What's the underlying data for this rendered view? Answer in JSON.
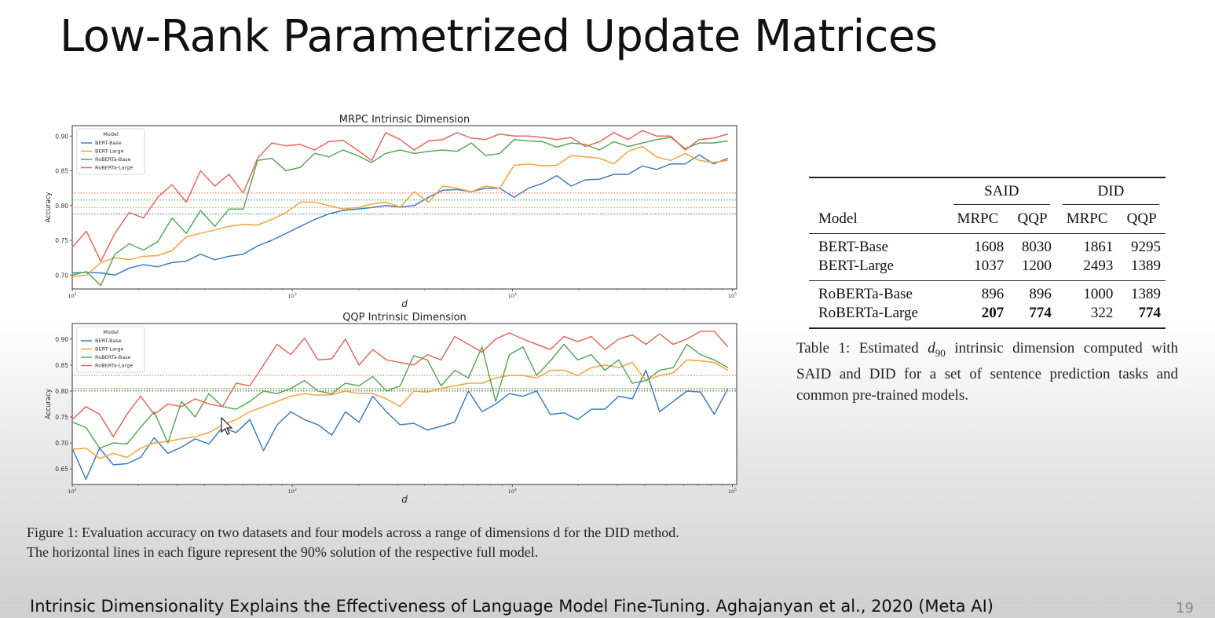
{
  "slide": {
    "title": "Low-Rank Parametrized Update Matrices",
    "footer": "Intrinsic Dimensionality Explains the Effectiveness of Language Model Fine-Tuning. Aghajanyan et al., 2020 (Meta AI)",
    "page_number": "19"
  },
  "figure_caption": {
    "line1": "Figure 1: Evaluation accuracy on two datasets and four models across a range of dimensions d for the DID method.",
    "line2": "The horizontal lines in each figure represent the 90% solution of the respective full model."
  },
  "table": {
    "group_headers": [
      "SAID",
      "DID"
    ],
    "columns": [
      "Model",
      "MRPC",
      "QQP",
      "MRPC",
      "QQP"
    ],
    "rows": [
      {
        "model": "BERT-Base",
        "values": [
          "1608",
          "8030",
          "1861",
          "9295"
        ]
      },
      {
        "model": "BERT-Large",
        "values": [
          "1037",
          "1200",
          "2493",
          "1389"
        ]
      },
      {
        "model": "RoBERTa-Base",
        "values": [
          "896",
          "896",
          "1000",
          "1389"
        ]
      },
      {
        "model": "RoBERTa-Large",
        "values": [
          "207",
          "774",
          "322",
          "774"
        ]
      }
    ],
    "caption_parts": [
      "Table 1: Estimated ",
      "d",
      "90",
      " intrinsic dimension computed with SAID and DID for a set of sentence prediction tasks and common pre-trained models."
    ]
  },
  "chart_data": [
    {
      "type": "line",
      "title": "MRPC Intrinsic Dimension",
      "xlabel": "d",
      "ylabel": "Accuracy",
      "xscale": "log",
      "xlim": [
        2,
        5.02
      ],
      "ylim": [
        0.68,
        0.915
      ],
      "xticks": [
        2,
        3,
        4,
        5
      ],
      "yticks": [
        "0.70",
        "0.75",
        "0.80",
        "0.85",
        "0.90"
      ],
      "legend": {
        "title": "Model",
        "position": "top-left"
      },
      "series": [
        {
          "name": "BERT-Base",
          "color": "#3d7fbf",
          "threshold": 0.788,
          "y": [
            0.703,
            0.704,
            0.703,
            0.7,
            0.71,
            0.715,
            0.712,
            0.718,
            0.72,
            0.73,
            0.722,
            0.727,
            0.73,
            0.742,
            0.75,
            0.76,
            0.77,
            0.78,
            0.788,
            0.793,
            0.795,
            0.797,
            0.8,
            0.798,
            0.8,
            0.812,
            0.822,
            0.823,
            0.82,
            0.825,
            0.825,
            0.812,
            0.825,
            0.832,
            0.843,
            0.828,
            0.837,
            0.838,
            0.845,
            0.845,
            0.857,
            0.852,
            0.86,
            0.86,
            0.873,
            0.86,
            0.868
          ]
        },
        {
          "name": "BERT-Large",
          "color": "#f5a33b",
          "threshold": 0.797,
          "y": [
            0.698,
            0.7,
            0.718,
            0.725,
            0.722,
            0.727,
            0.728,
            0.735,
            0.755,
            0.76,
            0.765,
            0.77,
            0.773,
            0.772,
            0.78,
            0.79,
            0.805,
            0.805,
            0.8,
            0.795,
            0.797,
            0.802,
            0.805,
            0.798,
            0.82,
            0.805,
            0.828,
            0.825,
            0.82,
            0.828,
            0.825,
            0.858,
            0.86,
            0.857,
            0.858,
            0.872,
            0.87,
            0.868,
            0.86,
            0.878,
            0.885,
            0.87,
            0.865,
            0.875,
            0.865,
            0.862,
            0.865
          ]
        },
        {
          "name": "RoBERTa-Base",
          "color": "#5aa85a",
          "threshold": 0.808,
          "y": [
            0.7,
            0.705,
            0.685,
            0.73,
            0.745,
            0.736,
            0.748,
            0.782,
            0.76,
            0.793,
            0.77,
            0.795,
            0.795,
            0.865,
            0.868,
            0.85,
            0.855,
            0.875,
            0.87,
            0.88,
            0.872,
            0.862,
            0.875,
            0.88,
            0.875,
            0.878,
            0.88,
            0.878,
            0.89,
            0.872,
            0.875,
            0.895,
            0.893,
            0.892,
            0.884,
            0.89,
            0.888,
            0.88,
            0.892,
            0.885,
            0.89,
            0.895,
            0.898,
            0.882,
            0.89,
            0.89,
            0.893
          ]
        },
        {
          "name": "RoBERTa-Large",
          "color": "#e36a5c",
          "threshold": 0.818,
          "y": [
            0.74,
            0.763,
            0.72,
            0.76,
            0.79,
            0.782,
            0.812,
            0.83,
            0.805,
            0.85,
            0.828,
            0.845,
            0.818,
            0.868,
            0.89,
            0.886,
            0.888,
            0.88,
            0.892,
            0.894,
            0.88,
            0.865,
            0.905,
            0.895,
            0.88,
            0.893,
            0.895,
            0.905,
            0.897,
            0.895,
            0.903,
            0.9,
            0.9,
            0.898,
            0.895,
            0.898,
            0.885,
            0.892,
            0.905,
            0.895,
            0.908,
            0.9,
            0.9,
            0.88,
            0.895,
            0.897,
            0.903
          ]
        }
      ]
    },
    {
      "type": "line",
      "title": "QQP Intrinsic Dimension",
      "xlabel": "d",
      "ylabel": "Accuracy",
      "xscale": "log",
      "xlim": [
        2,
        5.02
      ],
      "ylim": [
        0.62,
        0.93
      ],
      "xticks": [
        2,
        3,
        4,
        5
      ],
      "yticks": [
        "0.65",
        "0.70",
        "0.75",
        "0.80",
        "0.85",
        "0.90"
      ],
      "legend": {
        "title": "Model",
        "position": "top-left"
      },
      "series": [
        {
          "name": "BERT-Base",
          "color": "#3d7fbf",
          "threshold": 0.8,
          "y": [
            0.69,
            0.63,
            0.69,
            0.658,
            0.66,
            0.672,
            0.71,
            0.68,
            0.692,
            0.708,
            0.698,
            0.73,
            0.72,
            0.745,
            0.685,
            0.735,
            0.76,
            0.745,
            0.735,
            0.715,
            0.76,
            0.74,
            0.79,
            0.76,
            0.735,
            0.738,
            0.725,
            0.732,
            0.74,
            0.8,
            0.76,
            0.775,
            0.795,
            0.79,
            0.8,
            0.755,
            0.758,
            0.745,
            0.765,
            0.765,
            0.79,
            0.785,
            0.84,
            0.76,
            0.78,
            0.8,
            0.798,
            0.755,
            0.805
          ]
        },
        {
          "name": "BERT-Large",
          "color": "#f5a33b",
          "threshold": 0.802,
          "y": [
            0.688,
            0.69,
            0.67,
            0.68,
            0.672,
            0.69,
            0.7,
            0.703,
            0.708,
            0.712,
            0.72,
            0.735,
            0.745,
            0.76,
            0.77,
            0.78,
            0.79,
            0.795,
            0.792,
            0.793,
            0.8,
            0.795,
            0.795,
            0.785,
            0.77,
            0.8,
            0.798,
            0.805,
            0.81,
            0.815,
            0.815,
            0.825,
            0.83,
            0.83,
            0.825,
            0.84,
            0.84,
            0.83,
            0.845,
            0.85,
            0.845,
            0.855,
            0.82,
            0.83,
            0.835,
            0.86,
            0.858,
            0.855,
            0.84
          ]
        },
        {
          "name": "RoBERTa-Base",
          "color": "#5aa85a",
          "threshold": 0.805,
          "y": [
            0.74,
            0.73,
            0.69,
            0.7,
            0.698,
            0.73,
            0.76,
            0.7,
            0.78,
            0.75,
            0.795,
            0.77,
            0.765,
            0.78,
            0.8,
            0.795,
            0.805,
            0.82,
            0.8,
            0.795,
            0.815,
            0.81,
            0.828,
            0.8,
            0.81,
            0.868,
            0.86,
            0.81,
            0.84,
            0.825,
            0.885,
            0.78,
            0.87,
            0.885,
            0.83,
            0.858,
            0.89,
            0.86,
            0.87,
            0.84,
            0.86,
            0.815,
            0.82,
            0.84,
            0.845,
            0.89,
            0.87,
            0.86,
            0.845
          ]
        },
        {
          "name": "RoBERTa-Large",
          "color": "#e36a5c",
          "threshold": 0.83,
          "y": [
            0.745,
            0.77,
            0.755,
            0.712,
            0.755,
            0.79,
            0.755,
            0.775,
            0.77,
            0.785,
            0.775,
            0.77,
            0.815,
            0.81,
            0.85,
            0.89,
            0.87,
            0.902,
            0.86,
            0.862,
            0.9,
            0.85,
            0.88,
            0.86,
            0.855,
            0.85,
            0.87,
            0.86,
            0.905,
            0.89,
            0.875,
            0.9,
            0.912,
            0.9,
            0.89,
            0.88,
            0.905,
            0.895,
            0.905,
            0.88,
            0.9,
            0.908,
            0.89,
            0.91,
            0.89,
            0.9,
            0.915,
            0.915,
            0.885
          ]
        }
      ]
    }
  ]
}
